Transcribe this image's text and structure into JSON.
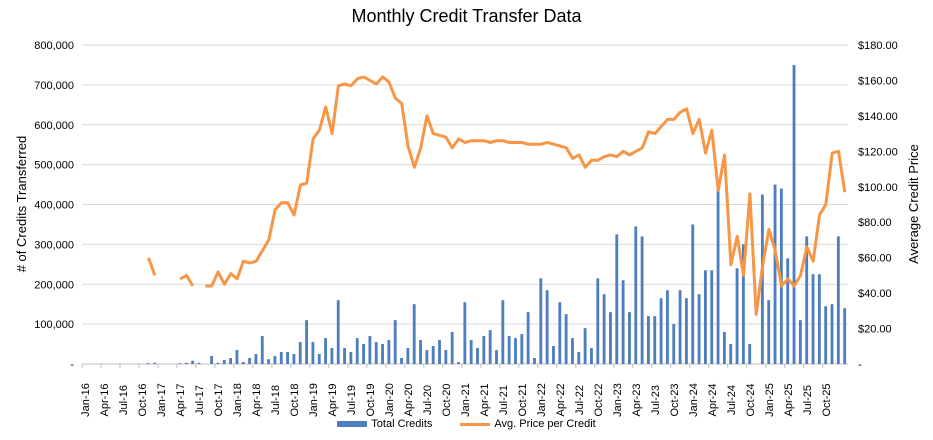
{
  "title": "Monthly Credit Transfer Data",
  "legend": {
    "bars": "Total Credits",
    "line": "Avg. Price per Credit"
  },
  "colors": {
    "bars": "#4e7ebd",
    "line": "#f79646",
    "grid": "#d9d9d9"
  },
  "chart_data": {
    "type": "bar+line",
    "title": "Monthly Credit Transfer Data",
    "ylabel": "# of Credits Transferred",
    "y2label": "Average Credit Price",
    "ylim": [
      0,
      800000
    ],
    "y2lim": [
      0,
      180
    ],
    "yticks": [
      "-",
      "100,000",
      "200,000",
      "300,000",
      "400,000",
      "500,000",
      "600,000",
      "700,000",
      "800,000"
    ],
    "y2ticks": [
      "-",
      "$20.00",
      "$40.00",
      "$60.00",
      "$80.00",
      "$100.00",
      "$120.00",
      "$140.00",
      "$160.00",
      "$180.00"
    ],
    "xticks": [
      "Jan-16",
      "Apr-16",
      "Jul-16",
      "Oct-16",
      "Jan-17",
      "Apr-17",
      "Jul-17",
      "Oct-17",
      "Jan-18",
      "Apr-18",
      "Jul-18",
      "Oct-18",
      "Jan-19",
      "Apr-19",
      "Jul-19",
      "Oct-19",
      "Jan-20",
      "Apr-20",
      "Jul-20",
      "Oct-20",
      "Jan-21",
      "Apr-21",
      "Jul-21",
      "Oct-21",
      "Jan-22",
      "Apr-22",
      "Jul-22",
      "Oct-22",
      "Jan-23",
      "Apr-23",
      "Jul-23",
      "Oct-23",
      "Jan-24",
      "Apr-24",
      "Jul-24",
      "Oct-24",
      "Jan-25",
      "Apr-25",
      "Jul-25",
      "Oct-25"
    ],
    "start_month": "Jan-16",
    "series": [
      {
        "name": "Total Credits",
        "type": "bar",
        "values": [
          0,
          0,
          0,
          0,
          0,
          0,
          0,
          0,
          0,
          0,
          2000,
          3000,
          0,
          0,
          0,
          2000,
          3000,
          8000,
          3000,
          0,
          20000,
          3000,
          10000,
          15000,
          35000,
          5000,
          15000,
          25000,
          70000,
          12000,
          20000,
          30000,
          30000,
          25000,
          55000,
          110000,
          55000,
          25000,
          65000,
          40000,
          160000,
          40000,
          30000,
          65000,
          50000,
          70000,
          55000,
          50000,
          60000,
          110000,
          15000,
          40000,
          150000,
          60000,
          35000,
          45000,
          60000,
          35000,
          80000,
          5000,
          155000,
          60000,
          40000,
          70000,
          85000,
          35000,
          160000,
          70000,
          65000,
          75000,
          130000,
          15000,
          215000,
          185000,
          45000,
          155000,
          125000,
          65000,
          30000,
          90000,
          40000,
          215000,
          175000,
          130000,
          325000,
          210000,
          130000,
          345000,
          320000,
          120000,
          120000,
          165000,
          185000,
          100000,
          185000,
          165000,
          350000,
          175000,
          235000,
          235000,
          445000,
          80000,
          50000,
          240000,
          300000,
          50000,
          0,
          425000,
          160000,
          450000,
          440000,
          265000,
          750000,
          110000,
          320000,
          225000,
          225000,
          145000,
          150000,
          320000,
          140000
        ]
      },
      {
        "name": "Avg. Price per Credit",
        "type": "line",
        "values": [
          null,
          null,
          null,
          null,
          null,
          null,
          null,
          null,
          null,
          null,
          60,
          50,
          null,
          null,
          null,
          48,
          50,
          44,
          null,
          44,
          44,
          52,
          45,
          51,
          48,
          58,
          57,
          58,
          64,
          70,
          87,
          91,
          91,
          84,
          101,
          102,
          127,
          132,
          145,
          130,
          157,
          158,
          157,
          161,
          162,
          160,
          158,
          162,
          159,
          150,
          147,
          123,
          111,
          122,
          140,
          130,
          129,
          128,
          122,
          127,
          125,
          126,
          126,
          126,
          125,
          126,
          126,
          125,
          125,
          125,
          124,
          124,
          124,
          125,
          124,
          123,
          122,
          116,
          118,
          111,
          115,
          115,
          117,
          118,
          117,
          120,
          118,
          120,
          122,
          131,
          130,
          134,
          138,
          138,
          142,
          144,
          130,
          138,
          119,
          132,
          98,
          118,
          56,
          72,
          50,
          96,
          28,
          55,
          76,
          64,
          44,
          48,
          44,
          50,
          66,
          58,
          84,
          90,
          119,
          120,
          97
        ]
      }
    ]
  }
}
